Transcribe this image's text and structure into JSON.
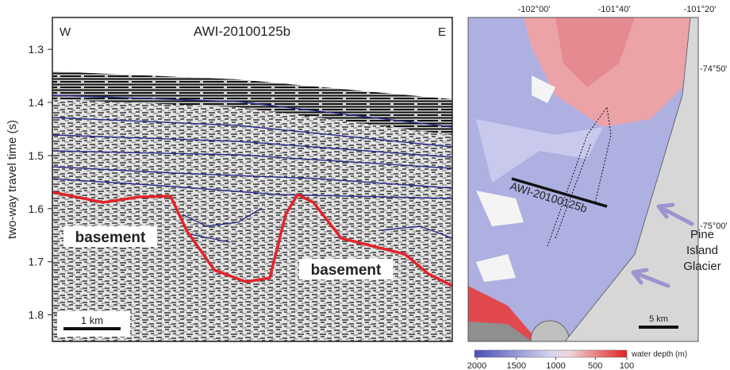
{
  "profile": {
    "title": "AWI-20100125b",
    "west": "W",
    "east": "E",
    "y_axis": {
      "label": "two-way travel time (s)",
      "ylim": [
        1.24,
        1.85
      ],
      "yticks": [
        1.3,
        1.4,
        1.5,
        1.6,
        1.7,
        1.8
      ]
    },
    "annotations": [
      "basement",
      "basement"
    ],
    "scale_bar": "1 km"
  },
  "map": {
    "lon_ticks": [
      "-102°00'",
      "-101°40'",
      "-101°20'"
    ],
    "lat_ticks": [
      "-74°50'",
      "-75°00'"
    ],
    "profile_label": "AWI-20100125b",
    "glacier_label": [
      "Pine",
      "Island",
      "Glacier"
    ],
    "scale_bar": "5 km",
    "colorbar": {
      "label": "water depth (m)",
      "ticks": [
        2000,
        1500,
        1000,
        500,
        100
      ]
    }
  }
}
